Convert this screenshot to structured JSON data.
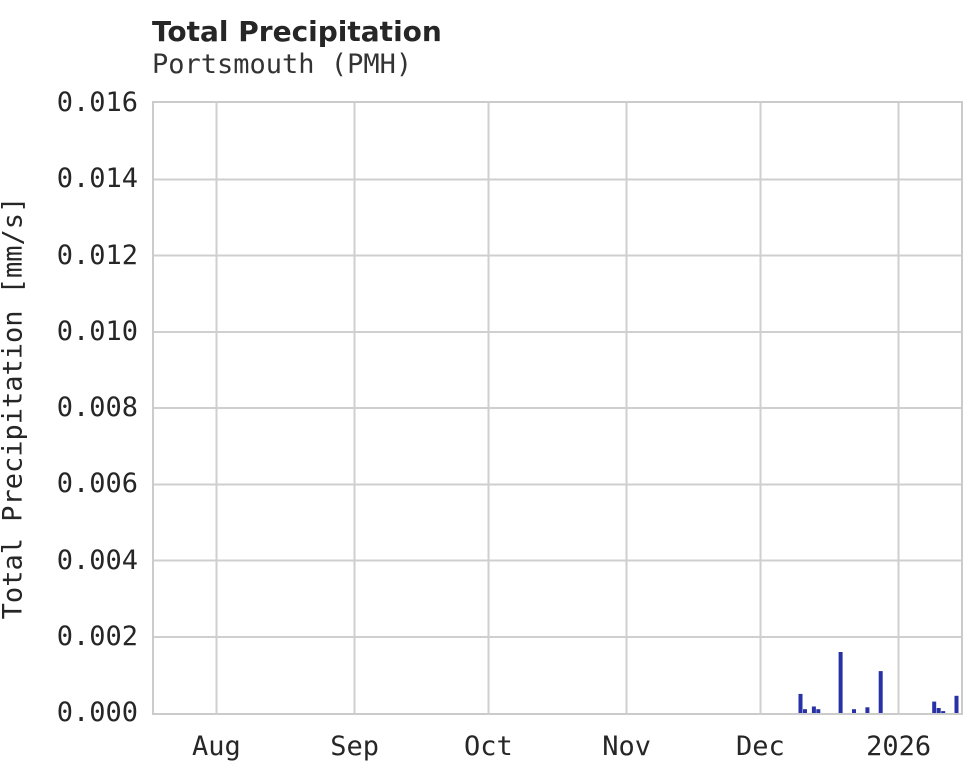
{
  "chart_data": {
    "type": "line",
    "title": "Total Precipitation",
    "subtitle": "Portsmouth (PMH)",
    "xlabel": "",
    "ylabel": "Total Precipitation [mm/s]",
    "x_domain": [
      "2025-07-18",
      "2026-01-15"
    ],
    "ylim": [
      0,
      0.016
    ],
    "grid": true,
    "legend": "none",
    "colors": {
      "series": "#2832a6",
      "grid": "#cfcfcf",
      "spine": "#cbcbcb",
      "text": "#262626",
      "background": "#ffffff"
    },
    "y_ticks": [
      {
        "value": 0.0,
        "label": "0.000"
      },
      {
        "value": 0.002,
        "label": "0.002"
      },
      {
        "value": 0.004,
        "label": "0.004"
      },
      {
        "value": 0.006,
        "label": "0.006"
      },
      {
        "value": 0.008,
        "label": "0.008"
      },
      {
        "value": 0.01,
        "label": "0.010"
      },
      {
        "value": 0.012,
        "label": "0.012"
      },
      {
        "value": 0.014,
        "label": "0.014"
      },
      {
        "value": 0.016,
        "label": "0.016"
      }
    ],
    "x_ticks": [
      {
        "date": "2025-08-01",
        "label": "Aug"
      },
      {
        "date": "2025-09-01",
        "label": "Sep"
      },
      {
        "date": "2025-10-01",
        "label": "Oct"
      },
      {
        "date": "2025-11-01",
        "label": "Nov"
      },
      {
        "date": "2025-12-01",
        "label": "Dec"
      },
      {
        "date": "2026-01-01",
        "label": "2026"
      }
    ],
    "series": [
      {
        "name": "Total Precipitation [mm/s]",
        "points": [
          {
            "date": "2025-12-10",
            "value": 0.0005
          },
          {
            "date": "2025-12-11",
            "value": 0.0001
          },
          {
            "date": "2025-12-13",
            "value": 0.00017
          },
          {
            "date": "2025-12-14",
            "value": 0.0001
          },
          {
            "date": "2025-12-19",
            "value": 0.0016
          },
          {
            "date": "2025-12-22",
            "value": 0.0001
          },
          {
            "date": "2025-12-25",
            "value": 0.00015
          },
          {
            "date": "2025-12-28",
            "value": 0.0011
          },
          {
            "date": "2026-01-09",
            "value": 0.0003
          },
          {
            "date": "2026-01-10",
            "value": 0.00013
          },
          {
            "date": "2026-01-11",
            "value": 5e-05
          },
          {
            "date": "2026-01-14",
            "value": 0.00045
          }
        ]
      }
    ]
  }
}
